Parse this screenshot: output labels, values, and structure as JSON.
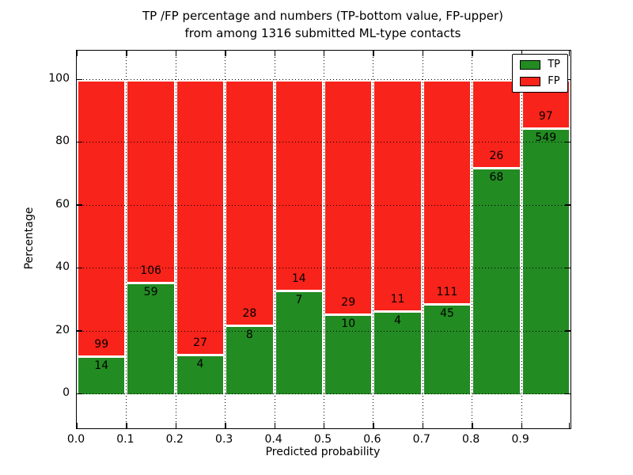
{
  "title": {
    "line1": "TP /FP percentage and numbers (TP-bottom value, FP-upper)",
    "line2": "from among 1316 submitted ML-type contacts"
  },
  "axes": {
    "x_label": "Predicted probability",
    "y_label": "Percentage",
    "x_ticks": [
      "0.0",
      "0.1",
      "0.2",
      "0.3",
      "0.4",
      "0.5",
      "0.6",
      "0.7",
      "0.8",
      "0.9"
    ],
    "y_ticks": [
      "0",
      "20",
      "40",
      "60",
      "80",
      "100"
    ]
  },
  "legend": [
    {
      "label": "TP",
      "color": "#228b22"
    },
    {
      "label": "FP",
      "color": "#f8231a"
    }
  ],
  "colors": {
    "tp_green": "#228b22",
    "fp_red": "#f8231a",
    "grid": "#000000",
    "background": "#ffffff",
    "text": "#000000"
  },
  "chart_data": {
    "type": "bar",
    "stacked": true,
    "normalized": "each bar scaled to 100 percent",
    "title": "TP /FP percentage and numbers (TP-bottom value, FP-upper) from among 1316 submitted ML-type contacts",
    "xlabel": "Predicted probability",
    "ylabel": "Percentage",
    "total_contacts": 1316,
    "categories": [
      "0.0",
      "0.1",
      "0.2",
      "0.3",
      "0.4",
      "0.5",
      "0.6",
      "0.7",
      "0.8",
      "0.9"
    ],
    "bin_width": 0.1,
    "series": [
      {
        "name": "TP",
        "color": "#228b22",
        "counts": [
          14,
          59,
          4,
          8,
          7,
          10,
          4,
          45,
          68,
          549
        ],
        "percent": [
          12.4,
          35.8,
          12.9,
          22.2,
          33.3,
          25.6,
          26.7,
          28.8,
          72.3,
          85.0
        ]
      },
      {
        "name": "FP",
        "color": "#f8231a",
        "counts": [
          99,
          106,
          27,
          28,
          14,
          29,
          11,
          111,
          26,
          97
        ],
        "percent": [
          87.6,
          64.2,
          87.1,
          77.8,
          66.7,
          74.4,
          73.3,
          71.2,
          27.7,
          15.0
        ]
      }
    ],
    "xlim": [
      0,
      1
    ],
    "ylim": [
      -11,
      109
    ],
    "grid": true,
    "grid_style": "dotted",
    "legend_position": "upper right"
  }
}
